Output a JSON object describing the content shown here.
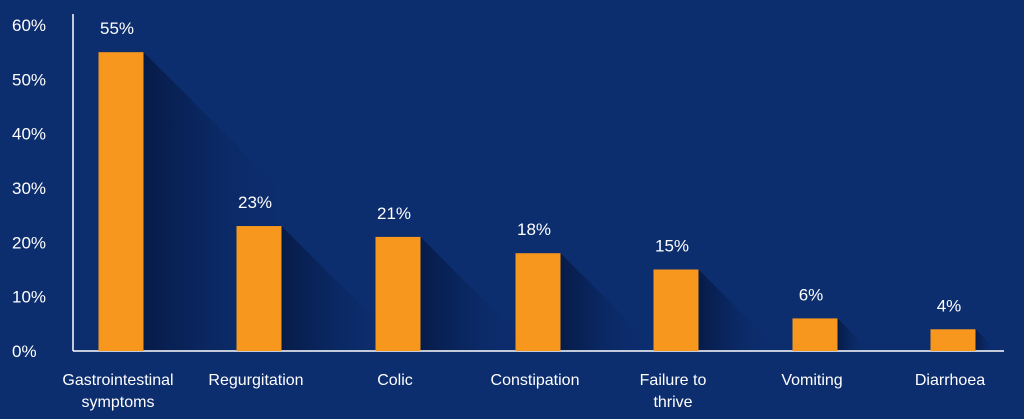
{
  "chart_data": {
    "type": "bar",
    "title": "",
    "xlabel": "",
    "ylabel": "",
    "categories": [
      [
        "Gastrointestinal",
        "symptoms"
      ],
      [
        "Regurgitation"
      ],
      [
        "Colic"
      ],
      [
        "Constipation"
      ],
      [
        "Failure to",
        "thrive"
      ],
      [
        "Vomiting"
      ],
      [
        "Diarrhoea"
      ]
    ],
    "values": [
      55,
      23,
      21,
      18,
      15,
      6,
      4
    ],
    "data_labels": [
      "55%",
      "23%",
      "21%",
      "18%",
      "15%",
      "6%",
      "4%"
    ],
    "y_ticks": [
      "0%",
      "10%",
      "20%",
      "30%",
      "40%",
      "50%",
      "60%"
    ],
    "y_tick_values": [
      0,
      10,
      20,
      30,
      40,
      50,
      60
    ],
    "ylim": [
      0,
      60
    ],
    "grid": false,
    "legend": "none"
  },
  "colors": {
    "background": "#0c2d6e",
    "bar": "#f7971e",
    "axis": "#ffffff",
    "shadow": "#061a45"
  }
}
